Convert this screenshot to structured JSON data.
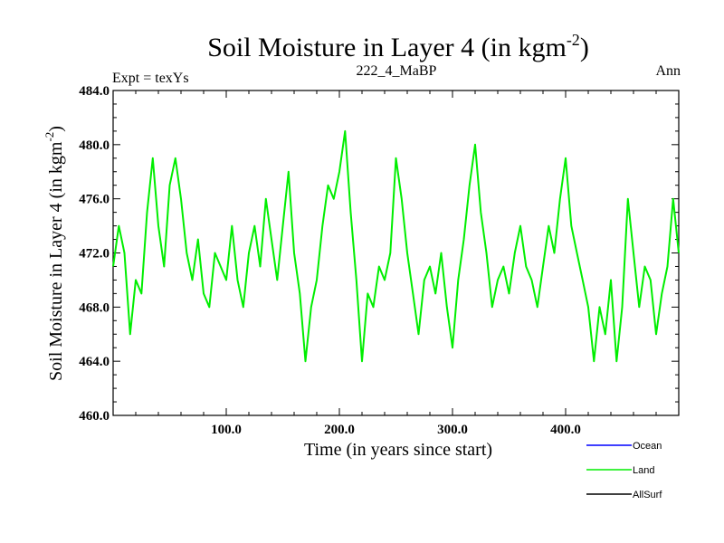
{
  "chart_data": {
    "type": "line",
    "title": "Soil Moisture in Layer 4 (in kgm",
    "title_sup": "-2",
    "title_suffix": ")",
    "subtitle_left": "Expt = texYs",
    "subtitle_center": "222_4_MaBP",
    "subtitle_right": "Ann",
    "xlabel": "Time (in years since start)",
    "ylabel": "Soil Moisture in Layer 4 (in kgm",
    "ylabel_sup": "-2",
    "ylabel_suffix": ")",
    "xlim": [
      0,
      500
    ],
    "ylim": [
      460,
      484
    ],
    "xticks": [
      100,
      200,
      300,
      400
    ],
    "xtick_labels": [
      "100.0",
      "200.0",
      "300.0",
      "400.0"
    ],
    "yticks": [
      460,
      464,
      468,
      472,
      476,
      480,
      484
    ],
    "ytick_labels": [
      "460.0",
      "464.0",
      "468.0",
      "472.0",
      "476.0",
      "480.0",
      "484.0"
    ],
    "legend_position": "bottom-right",
    "legend": [
      {
        "name": "Ocean",
        "color": "#0000ff"
      },
      {
        "name": "Land",
        "color": "#00ee00"
      },
      {
        "name": "AllSurf",
        "color": "#000000"
      }
    ],
    "series": [
      {
        "name": "Land",
        "color": "#00ee00",
        "x": [
          0,
          5,
          10,
          15,
          20,
          25,
          30,
          35,
          40,
          45,
          50,
          55,
          60,
          65,
          70,
          75,
          80,
          85,
          90,
          95,
          100,
          105,
          110,
          115,
          120,
          125,
          130,
          135,
          140,
          145,
          150,
          155,
          160,
          165,
          170,
          175,
          180,
          185,
          190,
          195,
          200,
          205,
          210,
          215,
          220,
          225,
          230,
          235,
          240,
          245,
          250,
          255,
          260,
          265,
          270,
          275,
          280,
          285,
          290,
          295,
          300,
          305,
          310,
          315,
          320,
          325,
          330,
          335,
          340,
          345,
          350,
          355,
          360,
          365,
          370,
          375,
          380,
          385,
          390,
          395,
          400,
          405,
          410,
          415,
          420,
          425,
          430,
          435,
          440,
          445,
          450,
          455,
          460,
          465,
          470,
          475,
          480,
          485,
          490,
          495,
          500
        ],
        "y": [
          471,
          474,
          472,
          466,
          470,
          469,
          475,
          479,
          474,
          471,
          477,
          479,
          476,
          472,
          470,
          473,
          469,
          468,
          472,
          471,
          470,
          474,
          470,
          468,
          472,
          474,
          471,
          476,
          473,
          470,
          474,
          478,
          472,
          469,
          464,
          468,
          470,
          474,
          477,
          476,
          478,
          481,
          475,
          470,
          464,
          469,
          468,
          471,
          470,
          472,
          479,
          476,
          472,
          469,
          466,
          470,
          471,
          469,
          472,
          468,
          465,
          470,
          473,
          477,
          480,
          475,
          472,
          468,
          470,
          471,
          469,
          472,
          474,
          471,
          470,
          468,
          471,
          474,
          472,
          476,
          479,
          474,
          472,
          470,
          468,
          464,
          468,
          466,
          470,
          464,
          468,
          476,
          472,
          468,
          471,
          470,
          466,
          469,
          471,
          476,
          472
        ]
      }
    ]
  }
}
